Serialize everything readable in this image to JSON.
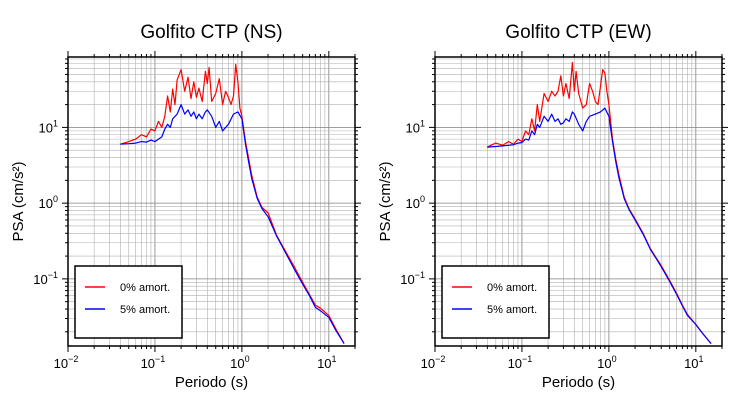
{
  "chart_data": [
    {
      "type": "line",
      "title": "Golfito CTP (NS)",
      "xlabel": "Periodo (s)",
      "ylabel": "PSA (cm/s²)",
      "xscale": "log",
      "yscale": "log",
      "xlim": [
        0.01,
        20
      ],
      "ylim": [
        0.013,
        85
      ],
      "grid": true,
      "legend_position": "bottom-left",
      "x_ticks": [
        {
          "base": "10",
          "exp": "−2"
        },
        {
          "base": "10",
          "exp": "−1"
        },
        {
          "base": "10",
          "exp": "0"
        },
        {
          "base": "10",
          "exp": "1"
        }
      ],
      "y_ticks": [
        {
          "base": "10",
          "exp": "−1"
        },
        {
          "base": "10",
          "exp": "0"
        },
        {
          "base": "10",
          "exp": "1"
        }
      ],
      "colors": {
        "series_0": "#ff0000",
        "series_1": "#0000ff"
      },
      "series": [
        {
          "name": "0% amort.",
          "x": [
            0.04,
            0.05,
            0.06,
            0.07,
            0.08,
            0.09,
            0.1,
            0.11,
            0.12,
            0.13,
            0.14,
            0.15,
            0.16,
            0.17,
            0.18,
            0.2,
            0.22,
            0.24,
            0.26,
            0.28,
            0.3,
            0.32,
            0.35,
            0.38,
            0.4,
            0.42,
            0.45,
            0.5,
            0.55,
            0.6,
            0.65,
            0.7,
            0.75,
            0.8,
            0.85,
            0.9,
            0.95,
            1.0,
            1.1,
            1.2,
            1.3,
            1.5,
            1.7,
            2.0,
            2.5,
            3.0,
            3.5,
            4.0,
            5.0,
            6.0,
            7.0,
            8.0,
            10.0,
            12.0,
            15.0
          ],
          "values": [
            6.0,
            6.5,
            7.0,
            8.0,
            7.5,
            9.5,
            9.0,
            12.0,
            10.0,
            14.0,
            26.0,
            16.0,
            32.0,
            20.0,
            42.0,
            58.0,
            30.0,
            46.0,
            24.0,
            40.0,
            25.0,
            33.0,
            22.0,
            55.0,
            38.0,
            62.0,
            22.0,
            28.0,
            44.0,
            20.0,
            30.0,
            25.0,
            20.0,
            26.0,
            68.0,
            40.0,
            18.0,
            14.0,
            6.5,
            3.8,
            2.3,
            1.2,
            0.88,
            0.74,
            0.38,
            0.26,
            0.19,
            0.145,
            0.09,
            0.062,
            0.045,
            0.041,
            0.033,
            0.022,
            0.014
          ]
        },
        {
          "name": "5% amort.",
          "x": [
            0.04,
            0.05,
            0.06,
            0.07,
            0.08,
            0.09,
            0.1,
            0.11,
            0.12,
            0.13,
            0.14,
            0.15,
            0.16,
            0.18,
            0.2,
            0.22,
            0.24,
            0.26,
            0.28,
            0.3,
            0.32,
            0.35,
            0.38,
            0.4,
            0.45,
            0.5,
            0.55,
            0.6,
            0.7,
            0.8,
            0.9,
            1.0,
            1.1,
            1.2,
            1.3,
            1.5,
            1.7,
            2.0,
            2.5,
            3.0,
            3.5,
            4.0,
            5.0,
            6.0,
            7.0,
            8.0,
            10.0,
            12.0,
            15.0
          ],
          "values": [
            6.0,
            6.1,
            6.2,
            6.5,
            6.4,
            6.8,
            6.5,
            7.0,
            7.5,
            9.5,
            11.0,
            10.0,
            13.0,
            15.0,
            20.0,
            15.0,
            17.0,
            14.0,
            16.0,
            13.0,
            15.0,
            13.0,
            16.0,
            17.0,
            14.0,
            10.0,
            12.0,
            9.0,
            11.0,
            15.0,
            16.0,
            13.0,
            6.0,
            3.4,
            2.1,
            1.15,
            0.85,
            0.66,
            0.37,
            0.25,
            0.18,
            0.135,
            0.085,
            0.06,
            0.042,
            0.038,
            0.031,
            0.021,
            0.014
          ]
        }
      ]
    },
    {
      "type": "line",
      "title": "Golfito CTP (EW)",
      "xlabel": "Periodo (s)",
      "ylabel": "PSA (cm/s²)",
      "xscale": "log",
      "yscale": "log",
      "xlim": [
        0.01,
        20
      ],
      "ylim": [
        0.013,
        85
      ],
      "grid": true,
      "legend_position": "bottom-left",
      "x_ticks": [
        {
          "base": "10",
          "exp": "−2"
        },
        {
          "base": "10",
          "exp": "−1"
        },
        {
          "base": "10",
          "exp": "0"
        },
        {
          "base": "10",
          "exp": "1"
        }
      ],
      "y_ticks": [
        {
          "base": "10",
          "exp": "−1"
        },
        {
          "base": "10",
          "exp": "0"
        },
        {
          "base": "10",
          "exp": "1"
        }
      ],
      "colors": {
        "series_0": "#ff0000",
        "series_1": "#0000ff"
      },
      "series": [
        {
          "name": "0% amort.",
          "x": [
            0.04,
            0.05,
            0.06,
            0.07,
            0.08,
            0.09,
            0.1,
            0.11,
            0.12,
            0.13,
            0.14,
            0.15,
            0.16,
            0.18,
            0.2,
            0.22,
            0.24,
            0.26,
            0.28,
            0.3,
            0.32,
            0.35,
            0.38,
            0.4,
            0.42,
            0.45,
            0.5,
            0.55,
            0.6,
            0.65,
            0.7,
            0.75,
            0.8,
            0.85,
            0.9,
            0.95,
            1.0,
            1.1,
            1.2,
            1.3,
            1.5,
            1.7,
            2.0,
            2.5,
            3.0,
            3.5,
            4.0,
            5.0,
            6.0,
            7.0,
            8.0,
            10.0,
            12.0,
            15.0
          ],
          "values": [
            5.5,
            6.2,
            5.8,
            6.5,
            6.0,
            7.0,
            6.5,
            9.0,
            8.0,
            13.0,
            9.0,
            20.0,
            12.0,
            28.0,
            22.0,
            30.0,
            26.0,
            30.0,
            48.0,
            26.0,
            38.0,
            24.0,
            72.0,
            30.0,
            55.0,
            28.0,
            18.0,
            20.0,
            38.0,
            30.0,
            22.0,
            20.0,
            35.0,
            58.0,
            52.0,
            30.0,
            20.0,
            7.0,
            3.8,
            2.4,
            1.2,
            0.85,
            0.62,
            0.39,
            0.25,
            0.19,
            0.15,
            0.095,
            0.065,
            0.045,
            0.034,
            0.025,
            0.019,
            0.014
          ]
        },
        {
          "name": "5% amort.",
          "x": [
            0.04,
            0.05,
            0.06,
            0.07,
            0.08,
            0.09,
            0.1,
            0.11,
            0.12,
            0.13,
            0.14,
            0.15,
            0.16,
            0.18,
            0.2,
            0.22,
            0.24,
            0.26,
            0.28,
            0.3,
            0.32,
            0.35,
            0.38,
            0.4,
            0.45,
            0.5,
            0.55,
            0.6,
            0.7,
            0.8,
            0.9,
            1.0,
            1.1,
            1.2,
            1.3,
            1.5,
            1.7,
            2.0,
            2.5,
            3.0,
            3.5,
            4.0,
            5.0,
            6.0,
            7.0,
            8.0,
            10.0,
            12.0,
            15.0
          ],
          "values": [
            5.5,
            5.6,
            5.7,
            5.8,
            5.9,
            6.2,
            6.3,
            7.0,
            6.8,
            9.0,
            8.0,
            11.0,
            10.0,
            14.0,
            12.0,
            15.0,
            12.0,
            13.0,
            11.0,
            11.5,
            13.0,
            12.0,
            16.0,
            15.0,
            11.0,
            9.0,
            12.0,
            14.0,
            15.0,
            16.0,
            18.0,
            14.0,
            6.5,
            3.5,
            2.2,
            1.15,
            0.83,
            0.6,
            0.38,
            0.245,
            0.185,
            0.145,
            0.092,
            0.063,
            0.044,
            0.033,
            0.025,
            0.019,
            0.014
          ]
        }
      ]
    }
  ]
}
